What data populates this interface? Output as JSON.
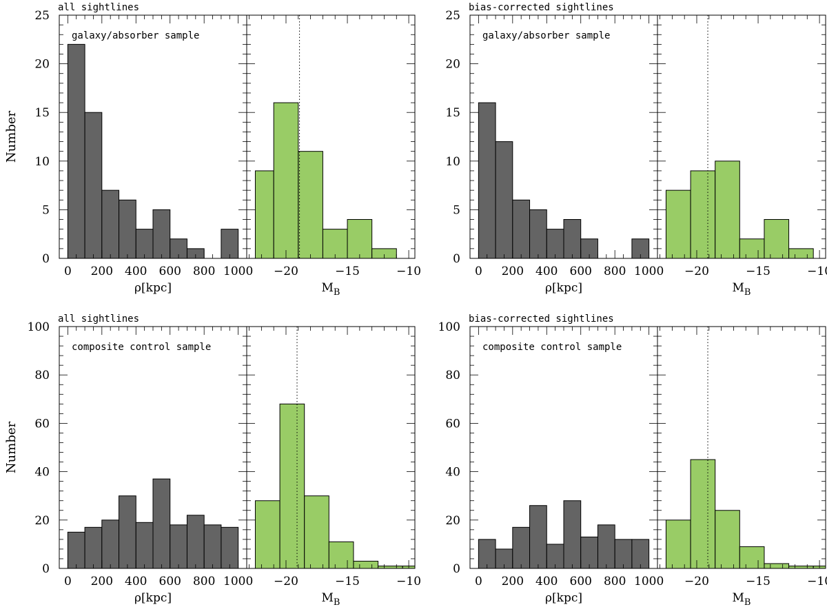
{
  "figure": {
    "colors": {
      "dark_bar": "#646464",
      "light_bar": "#99cc66",
      "axis": "#000000"
    }
  },
  "chart_data": [
    {
      "type": "bar",
      "panel": "top-left",
      "title": "all sightlines",
      "annotation": "galaxy/absorber sample",
      "ylabel": "Number",
      "ylim": [
        0,
        25
      ],
      "yticks": [
        0,
        5,
        10,
        15,
        20,
        25
      ],
      "left": {
        "xlabel": "ρ[kpc]",
        "xlim": [
          -50,
          1050
        ],
        "xticks": [
          0,
          200,
          400,
          600,
          800,
          1000
        ],
        "bin_edges": [
          0,
          100,
          200,
          300,
          400,
          500,
          600,
          700,
          800,
          900,
          1000
        ],
        "values": [
          22,
          15,
          7,
          6,
          3,
          5,
          2,
          1,
          0,
          3
        ]
      },
      "right": {
        "xlabel": "M_B",
        "xlim": [
          -23.2,
          -9.5
        ],
        "xticks": [
          -20,
          -15,
          -10
        ],
        "bin_edges": [
          -22.5,
          -21,
          -19,
          -17,
          -15,
          -13,
          -11,
          -9.5
        ],
        "values": [
          9,
          16,
          11,
          3,
          4,
          1,
          0
        ],
        "median": -18.9
      }
    },
    {
      "type": "bar",
      "panel": "top-right",
      "title": "bias-corrected sightlines",
      "annotation": "galaxy/absorber sample",
      "ylabel": "",
      "ylim": [
        0,
        25
      ],
      "yticks": [
        0,
        5,
        10,
        15,
        20,
        25
      ],
      "left": {
        "xlabel": "ρ[kpc]",
        "xlim": [
          -50,
          1050
        ],
        "xticks": [
          0,
          200,
          400,
          600,
          800,
          1000
        ],
        "bin_edges": [
          0,
          100,
          200,
          300,
          400,
          500,
          600,
          700,
          800,
          900,
          1000
        ],
        "values": [
          16,
          12,
          6,
          5,
          3,
          4,
          2,
          0,
          0,
          2
        ]
      },
      "right": {
        "xlabel": "M_B",
        "xlim": [
          -23.2,
          -9.5
        ],
        "xticks": [
          -20,
          -15,
          -10
        ],
        "bin_edges": [
          -22.5,
          -20.5,
          -18.5,
          -16.5,
          -14.5,
          -12.5,
          -10.5,
          -9.5
        ],
        "values": [
          7,
          9,
          10,
          2,
          4,
          1,
          0
        ],
        "median": -19.1
      }
    },
    {
      "type": "bar",
      "panel": "bottom-left",
      "title": "all sightlines",
      "annotation": "composite control sample",
      "ylabel": "Number",
      "ylim": [
        0,
        100
      ],
      "yticks": [
        0,
        20,
        40,
        60,
        80,
        100
      ],
      "left": {
        "xlabel": "ρ[kpc]",
        "xlim": [
          -50,
          1050
        ],
        "xticks": [
          0,
          200,
          400,
          600,
          800,
          1000
        ],
        "bin_edges": [
          0,
          100,
          200,
          300,
          400,
          500,
          600,
          700,
          800,
          900,
          1000
        ],
        "values": [
          15,
          17,
          20,
          30,
          19,
          37,
          18,
          22,
          18,
          17
        ]
      },
      "right": {
        "xlabel": "M_B",
        "xlim": [
          -23.2,
          -9.5
        ],
        "xticks": [
          -20,
          -15,
          -10
        ],
        "bin_edges": [
          -22.5,
          -20.5,
          -18.5,
          -16.5,
          -14.5,
          -12.5,
          -10.5,
          -9.5
        ],
        "values": [
          28,
          68,
          30,
          11,
          3,
          1,
          1
        ],
        "median": -19.1
      }
    },
    {
      "type": "bar",
      "panel": "bottom-right",
      "title": "bias-corrected sightlines",
      "annotation": "composite control sample",
      "ylabel": "",
      "ylim": [
        0,
        100
      ],
      "yticks": [
        0,
        20,
        40,
        60,
        80,
        100
      ],
      "left": {
        "xlabel": "ρ[kpc]",
        "xlim": [
          -50,
          1050
        ],
        "xticks": [
          0,
          200,
          400,
          600,
          800,
          1000
        ],
        "bin_edges": [
          0,
          100,
          200,
          300,
          400,
          500,
          600,
          700,
          800,
          900,
          1000
        ],
        "values": [
          12,
          8,
          17,
          26,
          10,
          28,
          13,
          18,
          12,
          12
        ]
      },
      "right": {
        "xlabel": "M_B",
        "xlim": [
          -23.2,
          -9.5
        ],
        "xticks": [
          -20,
          -15,
          -10
        ],
        "bin_edges": [
          -22.5,
          -20.5,
          -18.5,
          -16.5,
          -14.5,
          -12.5,
          -10.5,
          -9.5
        ],
        "values": [
          20,
          45,
          24,
          9,
          2,
          1,
          1
        ],
        "median": -19.1
      }
    }
  ]
}
